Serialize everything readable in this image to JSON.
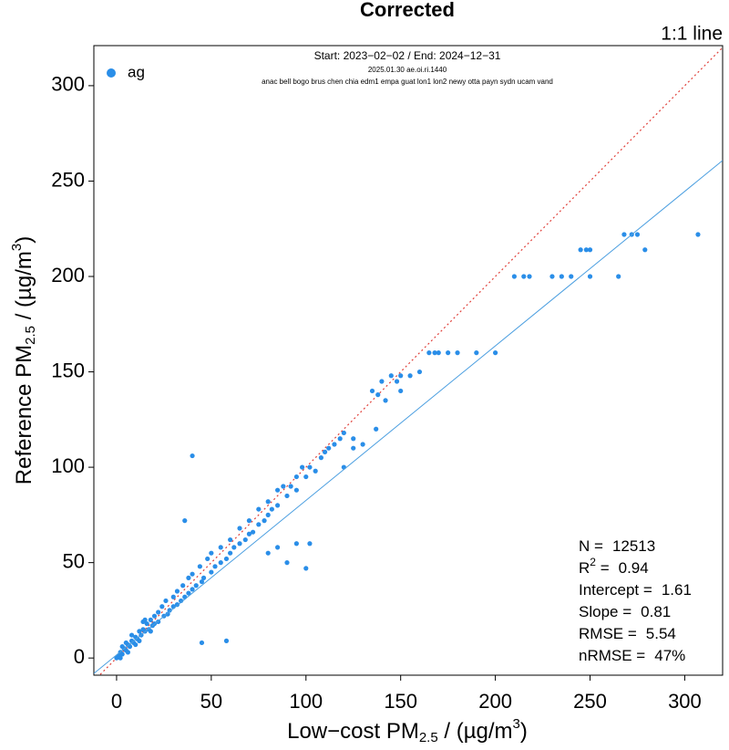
{
  "chart_data": {
    "type": "scatter",
    "title": "Corrected",
    "subtitle": [
      "Start: 2023−02−02 / End: 2024−12−31",
      "2025.01.30 ae.oi.ri.1440",
      "anac bell bogo brus chen chia edm1 empa guat lon1 lon2 newy otta payn sydn ucam vand"
    ],
    "x_label": [
      "Low−cost PM",
      "2.5",
      " / (µg/m",
      "3",
      ")"
    ],
    "y_label": [
      "Reference PM",
      "2.5",
      " / (µg/m",
      "3",
      ")"
    ],
    "one_to_one_line": {
      "label": "1:1 line",
      "color": "#e0403a"
    },
    "fit_line_color": "#4a9ee0",
    "xlim": [
      -12,
      320
    ],
    "ylim": [
      -9,
      321
    ],
    "xticks": [
      0,
      50,
      100,
      150,
      200,
      250,
      300
    ],
    "yticks": [
      0,
      50,
      100,
      150,
      200,
      250,
      300
    ],
    "grid": false,
    "legend": "top-left",
    "stats": [
      {
        "name": [
          "N ="
        ],
        "value": 12513
      },
      {
        "name": [
          "R",
          "2",
          " ="
        ],
        "value": 0.94
      },
      {
        "name": [
          "Intercept ="
        ],
        "value": 1.61
      },
      {
        "name": [
          "Slope ="
        ],
        "value": 0.81
      },
      {
        "name": [
          "RMSE ="
        ],
        "value": 5.54
      },
      {
        "name": [
          "nRMSE ="
        ],
        "value": 47,
        "value_label": "47%"
      }
    ],
    "x": [
      0,
      1,
      2,
      3,
      4,
      5,
      6,
      7,
      8,
      9,
      10,
      11,
      12,
      13,
      14,
      15,
      16,
      17,
      18,
      19,
      20,
      20,
      5,
      8,
      10,
      12,
      3,
      15,
      18,
      2,
      6,
      14,
      22,
      22,
      24,
      25,
      26,
      27,
      28,
      30,
      30,
      32,
      32,
      34,
      35,
      36,
      38,
      38,
      40,
      40,
      42,
      44,
      45,
      46,
      48,
      50,
      50,
      52,
      55,
      55,
      58,
      60,
      60,
      62,
      65,
      65,
      68,
      70,
      70,
      72,
      75,
      75,
      78,
      80,
      80,
      82,
      85,
      85,
      88,
      90,
      92,
      95,
      95,
      98,
      100,
      102,
      105,
      108,
      110,
      112,
      115,
      118,
      120,
      125,
      130,
      135,
      138,
      140,
      142,
      145,
      148,
      150,
      155,
      160,
      165,
      168,
      170,
      175,
      180,
      190,
      200,
      40,
      36,
      45,
      58,
      85,
      90,
      100,
      95,
      102,
      80,
      120,
      125,
      137,
      150,
      210,
      215,
      218,
      230,
      235,
      240,
      245,
      248,
      250,
      250,
      265,
      268,
      272,
      275,
      279,
      307
    ],
    "series": [
      {
        "name": "ag",
        "color": "#2a8ee8",
        "values": [
          0,
          1,
          3,
          2,
          5,
          4,
          7,
          6,
          9,
          8,
          11,
          10,
          14,
          12,
          15,
          14,
          18,
          15,
          20,
          17,
          22,
          18,
          8,
          12,
          7,
          9,
          6,
          20,
          14,
          0,
          3,
          19,
          24,
          19,
          27,
          22,
          30,
          23,
          25,
          32,
          27,
          35,
          28,
          30,
          38,
          32,
          42,
          34,
          36,
          44,
          38,
          48,
          40,
          42,
          52,
          45,
          55,
          48,
          50,
          58,
          52,
          55,
          62,
          58,
          60,
          68,
          62,
          65,
          72,
          66,
          70,
          78,
          72,
          75,
          82,
          78,
          80,
          88,
          90,
          85,
          90,
          95,
          88,
          100,
          95,
          100,
          98,
          105,
          108,
          110,
          112,
          115,
          118,
          115,
          112,
          140,
          138,
          145,
          135,
          148,
          145,
          148,
          148,
          150,
          160,
          160,
          160,
          160,
          160,
          160,
          160,
          106,
          72,
          8,
          9,
          58,
          50,
          47,
          60,
          60,
          55,
          100,
          110,
          120,
          140,
          200,
          200,
          200,
          200,
          200,
          200,
          214,
          214,
          214,
          200,
          200,
          222,
          222,
          222,
          214,
          222
        ]
      }
    ]
  }
}
